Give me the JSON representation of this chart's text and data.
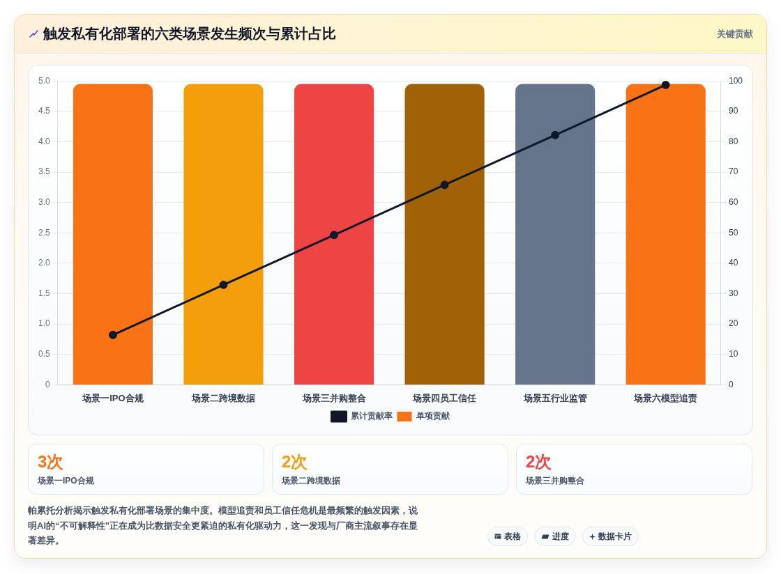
{
  "chart_data": {
    "type": "bar",
    "title": "触发私有化部署的六类场景发生频次与累计占比",
    "categories": [
      "场景一IPO合规",
      "场景二跨境数据",
      "场景三并购整合",
      "场景四员工信任",
      "场景五行业监管",
      "场景六模型追责"
    ],
    "series": [
      {
        "name": "累计贡献率",
        "type": "line",
        "axis": "y2",
        "color": "#0f172a",
        "values": [
          16.4,
          32.9,
          49.3,
          65.8,
          82.2,
          98.7
        ]
      },
      {
        "name": "单项贡献",
        "colors": [
          "#f97316",
          "#f59e0b",
          "#ef4444",
          "#a16207",
          "#64748b",
          "#f97316"
        ],
        "values": [
          4.95,
          4.95,
          4.95,
          4.95,
          4.95,
          4.95
        ]
      }
    ],
    "ylim": [
      0,
      5
    ],
    "yticks": [
      0,
      0.5,
      {
        "value": 1,
        "label": "1.0"
      },
      1.5,
      {
        "value": 2,
        "label": "2.0"
      },
      2.5,
      {
        "value": 3,
        "label": "3.0"
      },
      3.5,
      {
        "value": 4,
        "label": "4.0"
      },
      4.5,
      {
        "value": 5,
        "label": "5.0"
      }
    ],
    "y2lim": [
      0,
      100
    ],
    "y2ticks": [
      0,
      10,
      20,
      30,
      40,
      50,
      60,
      70,
      80,
      90,
      100
    ],
    "grid": "y",
    "legend": "bottom",
    "marker": "circle",
    "annotations": [
      "关键贡献",
      "3次",
      "场景一IPO合规",
      "2次",
      "场景二跨境数据",
      "2次",
      "场景三并购整合",
      "帕累托分析揭示触发私有化部署场景的集中度。模型追责和员工信任危机是最频繁的触发因素，说明AI的“不可解释性”正在成为比数据安全更紧迫的私有化驱动力，这一发现与厂商主流叙事存在显著差异。",
      "表格",
      "进度",
      "数据卡片"
    ]
  }
}
